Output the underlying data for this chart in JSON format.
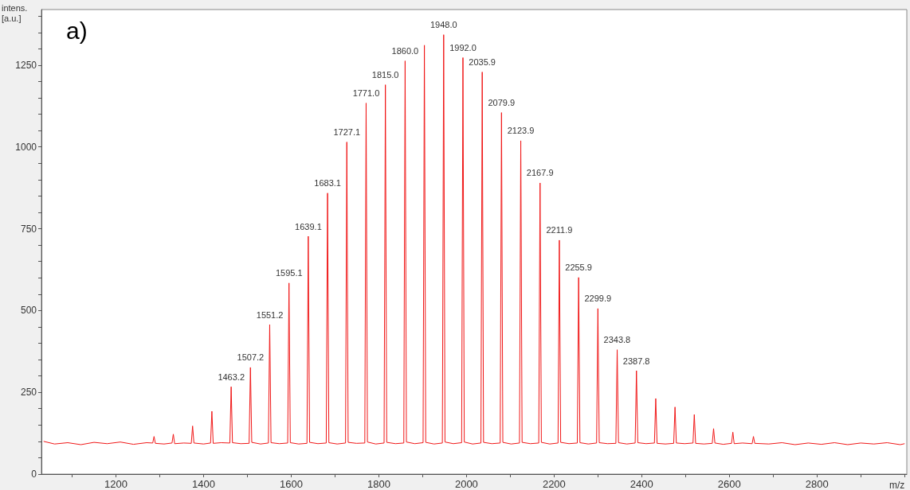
{
  "chart_data": {
    "type": "line",
    "title": "a)",
    "xlabel": "m/z",
    "ylabel": "intens. [a.u.]",
    "xlim": [
      1030,
      3005
    ],
    "xticks": [
      1200,
      1400,
      1600,
      1800,
      2000,
      2200,
      2400,
      2600,
      2800
    ],
    "ylim": [
      0,
      1420
    ],
    "yticks": [
      0,
      250,
      500,
      750,
      1000,
      1250
    ],
    "grid": false,
    "marker": "none",
    "line_style": "solid",
    "series": [
      {
        "color": "#f01818",
        "x": [
          1035,
          1060,
          1090,
          1120,
          1150,
          1180,
          1210,
          1240,
          1270,
          1284,
          1287,
          1290,
          1310,
          1328,
          1331,
          1334,
          1355,
          1372,
          1375,
          1378,
          1400,
          1416,
          1419,
          1422,
          1440,
          1460,
          1463,
          1466,
          1485,
          1504,
          1507,
          1510,
          1530,
          1548,
          1551,
          1554,
          1573,
          1592,
          1595,
          1598,
          1617,
          1636,
          1639,
          1642,
          1661,
          1680,
          1683,
          1686,
          1705,
          1724,
          1727,
          1730,
          1749,
          1768,
          1771,
          1774,
          1793,
          1812,
          1815,
          1818,
          1838,
          1857,
          1860,
          1863,
          1882,
          1901,
          1904,
          1907,
          1926,
          1945,
          1948,
          1951,
          1970,
          1989,
          1992,
          1995,
          2014,
          2033,
          2036,
          2039,
          2058,
          2077,
          2080,
          2083,
          2102,
          2121,
          2124,
          2127,
          2146,
          2165,
          2168,
          2171,
          2190,
          2209,
          2212,
          2215,
          2234,
          2253,
          2256,
          2259,
          2278,
          2297,
          2300,
          2303,
          2322,
          2341,
          2344,
          2347,
          2366,
          2385,
          2388,
          2391,
          2410,
          2429,
          2432,
          2435,
          2454,
          2473,
          2476,
          2479,
          2498,
          2517,
          2520,
          2523,
          2542,
          2561,
          2564,
          2567,
          2586,
          2605,
          2608,
          2611,
          2630,
          2652,
          2655,
          2658,
          2690,
          2720,
          2750,
          2780,
          2810,
          2840,
          2870,
          2900,
          2930,
          2960,
          2990,
          3000
        ],
        "values": [
          100,
          92,
          96,
          90,
          97,
          93,
          98,
          91,
          96,
          95,
          115,
          94,
          92,
          95,
          122,
          93,
          95,
          94,
          147,
          95,
          92,
          95,
          192,
          94,
          96,
          95,
          267,
          96,
          93,
          94,
          326,
          97,
          92,
          95,
          457,
          96,
          93,
          95,
          584,
          96,
          92,
          94,
          727,
          97,
          93,
          95,
          859,
          96,
          92,
          95,
          1015,
          97,
          94,
          95,
          1134,
          98,
          92,
          95,
          1190,
          97,
          93,
          95,
          1263,
          98,
          93,
          96,
          1311,
          97,
          92,
          95,
          1343,
          98,
          93,
          96,
          1273,
          98,
          92,
          95,
          1229,
          97,
          93,
          95,
          1105,
          97,
          92,
          95,
          1019,
          97,
          93,
          95,
          890,
          97,
          92,
          95,
          715,
          97,
          93,
          95,
          601,
          96,
          92,
          95,
          506,
          96,
          93,
          94,
          380,
          96,
          92,
          95,
          316,
          96,
          93,
          95,
          231,
          94,
          92,
          94,
          205,
          95,
          93,
          95,
          182,
          94,
          92,
          94,
          139,
          95,
          91,
          94,
          128,
          93,
          95,
          93,
          115,
          94,
          92,
          96,
          90,
          95,
          91,
          96,
          90,
          95,
          92,
          96,
          90,
          93
        ]
      }
    ],
    "annotations": [
      {
        "text": "1463.2",
        "x": 1463.2,
        "y": 267
      },
      {
        "text": "1507.2",
        "x": 1507.2,
        "y": 326
      },
      {
        "text": "1551.2",
        "x": 1551.2,
        "y": 457
      },
      {
        "text": "1595.1",
        "x": 1595.1,
        "y": 584
      },
      {
        "text": "1639.1",
        "x": 1639.1,
        "y": 727
      },
      {
        "text": "1683.1",
        "x": 1683.1,
        "y": 859
      },
      {
        "text": "1727.1",
        "x": 1727.1,
        "y": 1015
      },
      {
        "text": "1771.0",
        "x": 1771.0,
        "y": 1134
      },
      {
        "text": "1815.0",
        "x": 1815.0,
        "y": 1190
      },
      {
        "text": "1860.0",
        "x": 1860.0,
        "y": 1263
      },
      {
        "text": "1948.0",
        "x": 1948.0,
        "y": 1343
      },
      {
        "text": "1992.0",
        "x": 1992.0,
        "y": 1273
      },
      {
        "text": "2035.9",
        "x": 2035.9,
        "y": 1229
      },
      {
        "text": "2079.9",
        "x": 2079.9,
        "y": 1105
      },
      {
        "text": "2123.9",
        "x": 2123.9,
        "y": 1019
      },
      {
        "text": "2167.9",
        "x": 2167.9,
        "y": 890
      },
      {
        "text": "2211.9",
        "x": 2211.9,
        "y": 715
      },
      {
        "text": "2255.9",
        "x": 2255.9,
        "y": 601
      },
      {
        "text": "2299.9",
        "x": 2299.9,
        "y": 506
      },
      {
        "text": "2343.8",
        "x": 2343.8,
        "y": 380
      },
      {
        "text": "2387.8",
        "x": 2387.8,
        "y": 316
      }
    ]
  }
}
